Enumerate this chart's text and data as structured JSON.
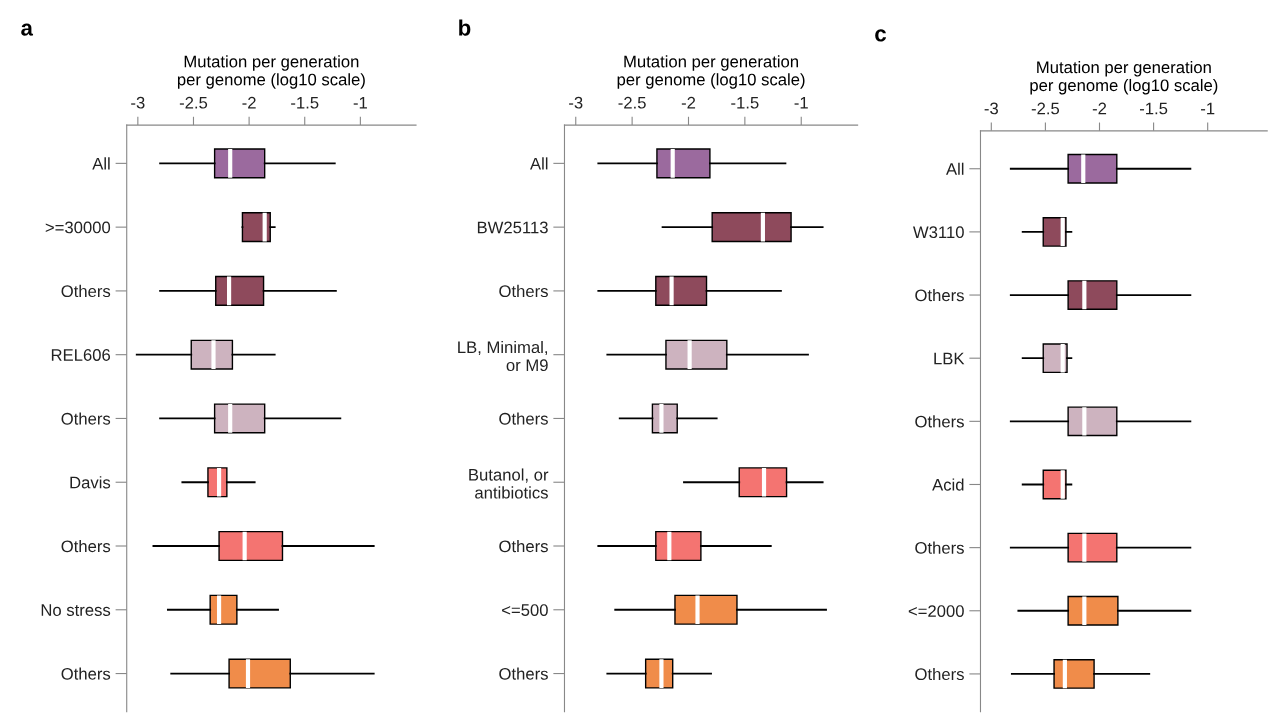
{
  "chart_data": [
    {
      "type": "box",
      "orientation": "horizontal",
      "title": "a",
      "xlabel": "Mutation per generation\nper genome (log10 scale)",
      "categories": [
        "All",
        ">=30000",
        "Others",
        "REL606",
        "Others",
        "Davis",
        "Others",
        "No stress",
        "Others"
      ],
      "colors": [
        "#9b6a9e",
        "#8e4a5c",
        "#8e4a5c",
        "#cdb3bf",
        "#cdb3bf",
        "#f47471",
        "#f47471",
        "#f08c4a",
        "#f08c4a"
      ],
      "boxes": [
        {
          "low": -2.8,
          "q1": -2.31,
          "median": -2.17,
          "q3": -1.86,
          "high": -1.23
        },
        {
          "low": -2.06,
          "q1": -2.06,
          "median": -1.86,
          "q3": -1.81,
          "high": -1.77
        },
        {
          "low": -2.8,
          "q1": -2.3,
          "median": -2.18,
          "q3": -1.87,
          "high": -1.22
        },
        {
          "low": -3.01,
          "q1": -2.52,
          "median": -2.32,
          "q3": -2.15,
          "high": -1.77
        },
        {
          "low": -2.8,
          "q1": -2.31,
          "median": -2.17,
          "q3": -1.86,
          "high": -1.18
        },
        {
          "low": -2.6,
          "q1": -2.37,
          "median": -2.27,
          "q3": -2.2,
          "high": -1.95
        },
        {
          "low": -2.86,
          "q1": -2.27,
          "median": -2.04,
          "q3": -1.7,
          "high": -0.88
        },
        {
          "low": -2.73,
          "q1": -2.35,
          "median": -2.27,
          "q3": -2.11,
          "high": -1.74
        },
        {
          "low": -2.7,
          "q1": -2.18,
          "median": -2.01,
          "q3": -1.63,
          "high": -0.88
        }
      ],
      "xlim": [
        -3.1,
        -0.5
      ],
      "xticks": [
        -3,
        -2.5,
        -2,
        -1.5,
        -1
      ],
      "grid": false
    },
    {
      "type": "box",
      "orientation": "horizontal",
      "title": "b",
      "xlabel": "Mutation per generation\nper genome (log10 scale)",
      "categories": [
        "All",
        "BW25113",
        "Others",
        "LB, Minimal,\nor M9",
        "Others",
        "Butanol, or\nantibiotics",
        "Others",
        "<=500",
        "Others"
      ],
      "colors": [
        "#9b6a9e",
        "#8e4a5c",
        "#8e4a5c",
        "#cdb3bf",
        "#cdb3bf",
        "#f47471",
        "#f47471",
        "#f08c4a",
        "#f08c4a"
      ],
      "boxes": [
        {
          "low": -2.8,
          "q1": -2.28,
          "median": -2.14,
          "q3": -1.81,
          "high": -1.14
        },
        {
          "low": -2.23,
          "q1": -1.79,
          "median": -1.34,
          "q3": -1.09,
          "high": -0.81
        },
        {
          "low": -2.8,
          "q1": -2.29,
          "median": -2.15,
          "q3": -1.84,
          "high": -1.18
        },
        {
          "low": -2.72,
          "q1": -2.2,
          "median": -1.99,
          "q3": -1.66,
          "high": -0.94
        },
        {
          "low": -2.61,
          "q1": -2.32,
          "median": -2.24,
          "q3": -2.1,
          "high": -1.75
        },
        {
          "low": -2.04,
          "q1": -1.55,
          "median": -1.33,
          "q3": -1.13,
          "high": -0.81
        },
        {
          "low": -2.8,
          "q1": -2.29,
          "median": -2.17,
          "q3": -1.89,
          "high": -1.27
        },
        {
          "low": -2.65,
          "q1": -2.12,
          "median": -1.92,
          "q3": -1.57,
          "high": -0.78
        },
        {
          "low": -2.72,
          "q1": -2.38,
          "median": -2.24,
          "q3": -2.14,
          "high": -1.8
        }
      ],
      "xlim": [
        -3.1,
        -0.5
      ],
      "xticks": [
        -3,
        -2.5,
        -2,
        -1.5,
        -1
      ],
      "grid": false
    },
    {
      "type": "box",
      "orientation": "horizontal",
      "title": "c",
      "xlabel": "Mutation per generation\nper genome (log10 scale)",
      "categories": [
        "All",
        "W3110",
        "Others",
        "LBK",
        "Others",
        "Acid",
        "Others",
        "<=2000",
        "Others"
      ],
      "colors": [
        "#9b6a9e",
        "#8e4a5c",
        "#8e4a5c",
        "#cdb3bf",
        "#cdb3bf",
        "#f47471",
        "#f47471",
        "#f08c4a",
        "#f08c4a"
      ],
      "boxes": [
        {
          "low": -2.82,
          "q1": -2.29,
          "median": -2.15,
          "q3": -1.84,
          "high": -1.16
        },
        {
          "low": -2.71,
          "q1": -2.52,
          "median": -2.34,
          "q3": -2.31,
          "high": -2.26
        },
        {
          "low": -2.82,
          "q1": -2.29,
          "median": -2.14,
          "q3": -1.84,
          "high": -1.16
        },
        {
          "low": -2.71,
          "q1": -2.52,
          "median": -2.34,
          "q3": -2.3,
          "high": -2.26
        },
        {
          "low": -2.82,
          "q1": -2.29,
          "median": -2.14,
          "q3": -1.84,
          "high": -1.16
        },
        {
          "low": -2.71,
          "q1": -2.52,
          "median": -2.34,
          "q3": -2.31,
          "high": -2.26
        },
        {
          "low": -2.82,
          "q1": -2.29,
          "median": -2.14,
          "q3": -1.84,
          "high": -1.16
        },
        {
          "low": -2.75,
          "q1": -2.29,
          "median": -2.14,
          "q3": -1.83,
          "high": -1.16
        },
        {
          "low": -2.81,
          "q1": -2.42,
          "median": -2.32,
          "q3": -2.05,
          "high": -1.54
        }
      ],
      "xlim": [
        -3.1,
        -0.45
      ],
      "xticks": [
        -3,
        -2.5,
        -2,
        -1.5,
        -1
      ],
      "grid": false
    }
  ]
}
